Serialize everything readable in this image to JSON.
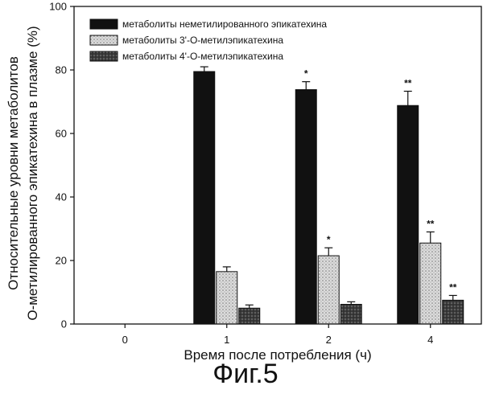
{
  "figure": {
    "caption": "Фиг.5"
  },
  "chart_data": {
    "type": "bar",
    "categories": [
      "0",
      "1",
      "2",
      "4"
    ],
    "xlabel": "Время после потребления (ч)",
    "ylabel": [
      "Относительные уровни метаболитов",
      "О-метилированного эпикатехина в плазме (%)"
    ],
    "ylim": [
      0,
      100
    ],
    "yticks": [
      0,
      20,
      40,
      60,
      80,
      100
    ],
    "grid": false,
    "legend_position": "top",
    "series": [
      {
        "name": "метаболиты неметилированного эпикатехина",
        "color": "#111111",
        "pattern": "solid",
        "values": [
          null,
          79.5,
          73.8,
          68.8
        ],
        "errors": [
          null,
          1.5,
          2.5,
          4.5
        ],
        "significance": [
          "",
          "",
          "*",
          "**"
        ]
      },
      {
        "name": "метаболиты 3'-O-метилэпикатехина",
        "color": "#c9c9c9",
        "pattern": "dots",
        "values": [
          null,
          16.5,
          21.5,
          25.5
        ],
        "errors": [
          null,
          1.5,
          2.5,
          3.5
        ],
        "significance": [
          "",
          "",
          "*",
          "**"
        ]
      },
      {
        "name": "метаболиты 4'-O-метилэпикатехина",
        "color": "#4a4a4a",
        "pattern": "dark-dots",
        "values": [
          null,
          5,
          6.2,
          7.5
        ],
        "errors": [
          null,
          1,
          0.8,
          1.5
        ],
        "significance": [
          "",
          "",
          "",
          "**"
        ]
      }
    ]
  }
}
